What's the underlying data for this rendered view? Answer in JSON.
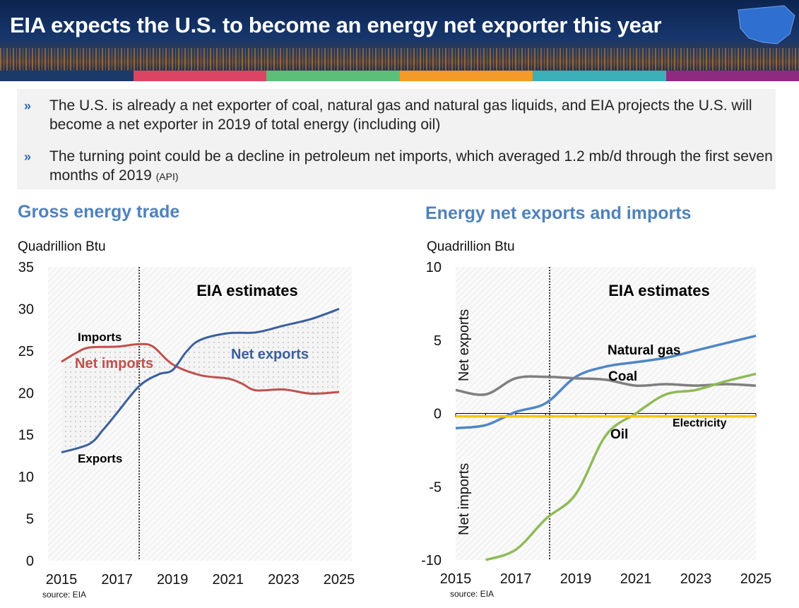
{
  "header": {
    "title": "EIA expects the U.S. to become an energy net exporter this year",
    "stripe_colors": [
      "#1a3a6a",
      "#dc4463",
      "#5cbf77",
      "#f39a28",
      "#3bb0b8",
      "#8e2b80"
    ]
  },
  "bullets": [
    {
      "text": "The U.S. is already a net exporter of coal, natural gas and natural gas liquids, and EIA projects the U.S. will become a net exporter in 2019 of total energy (including oil)",
      "note": ""
    },
    {
      "text": "The turning point could be a decline in petroleum net imports, which averaged 1.2 mb/d through the first seven months of 2019",
      "note": "(API)"
    }
  ],
  "chart_data": [
    {
      "type": "line",
      "title": "Gross energy trade",
      "ylabel": "Quadrillion Btu",
      "ylim": [
        0,
        35
      ],
      "yticks": [
        0,
        5,
        10,
        15,
        20,
        25,
        30,
        35
      ],
      "xlim": [
        2015,
        2025
      ],
      "xticks": [
        2015,
        2017,
        2019,
        2021,
        2023,
        2025
      ],
      "divider_x": 2017.8,
      "annotation": "EIA estimates",
      "source": "source: EIA",
      "area_labels": [
        "Net imports",
        "Net exports"
      ],
      "series": [
        {
          "name": "Imports",
          "color": "#c0504d",
          "x": [
            2015,
            2015.5,
            2016,
            2017,
            2017.8,
            2018.3,
            2019,
            2020,
            2021,
            2021.5,
            2022,
            2023,
            2024,
            2025
          ],
          "y": [
            23.7,
            24.7,
            25.4,
            25.5,
            25.8,
            25.5,
            23.4,
            22.1,
            21.7,
            21.1,
            20.3,
            20.4,
            19.9,
            20.1
          ]
        },
        {
          "name": "Exports",
          "color": "#3a5f9c",
          "x": [
            2015,
            2016,
            2016.5,
            2017,
            2017.8,
            2018.5,
            2019,
            2019.5,
            2020,
            2021,
            2022,
            2023,
            2024,
            2025
          ],
          "y": [
            12.9,
            13.9,
            15.6,
            17.6,
            20.8,
            22.2,
            22.7,
            24.9,
            26.3,
            27.1,
            27.2,
            28.0,
            28.8,
            30.0
          ]
        }
      ]
    },
    {
      "type": "line",
      "title": "Energy net exports and imports",
      "ylabel": "Quadrillion Btu",
      "ylim": [
        -10,
        10
      ],
      "yticks": [
        -10,
        -5,
        0,
        5,
        10
      ],
      "xlim": [
        2015,
        2025
      ],
      "xticks": [
        2015,
        2017,
        2019,
        2021,
        2023,
        2025
      ],
      "divider_x": 2018.13,
      "annotation": "EIA estimates",
      "source": "source: EIA",
      "side_labels": [
        "Net exports",
        "Net imports"
      ],
      "series": [
        {
          "name": "Natural gas",
          "color": "#4f86c6",
          "x": [
            2015,
            2016,
            2017,
            2018,
            2019,
            2020,
            2021,
            2022,
            2023,
            2024,
            2025
          ],
          "y": [
            -1.0,
            -0.8,
            0.1,
            0.7,
            2.5,
            3.2,
            3.5,
            3.8,
            4.3,
            4.8,
            5.3
          ]
        },
        {
          "name": "Coal",
          "color": "#7f7f7f",
          "x": [
            2015,
            2016,
            2017,
            2018,
            2019,
            2020,
            2021,
            2022,
            2023,
            2024,
            2025
          ],
          "y": [
            1.6,
            1.3,
            2.4,
            2.5,
            2.4,
            2.3,
            1.9,
            2.0,
            1.9,
            2.0,
            1.9
          ]
        },
        {
          "name": "Oil",
          "color": "#8fba58",
          "x": [
            2016,
            2017,
            2018,
            2019,
            2020,
            2021,
            2022,
            2023,
            2024,
            2025
          ],
          "y": [
            -10.0,
            -9.3,
            -7.2,
            -5.5,
            -1.5,
            0.0,
            1.3,
            1.6,
            2.2,
            2.7
          ]
        },
        {
          "name": "Electricity",
          "color": "#f5c518",
          "x": [
            2015,
            2025
          ],
          "y": [
            -0.2,
            -0.2
          ]
        }
      ]
    }
  ]
}
